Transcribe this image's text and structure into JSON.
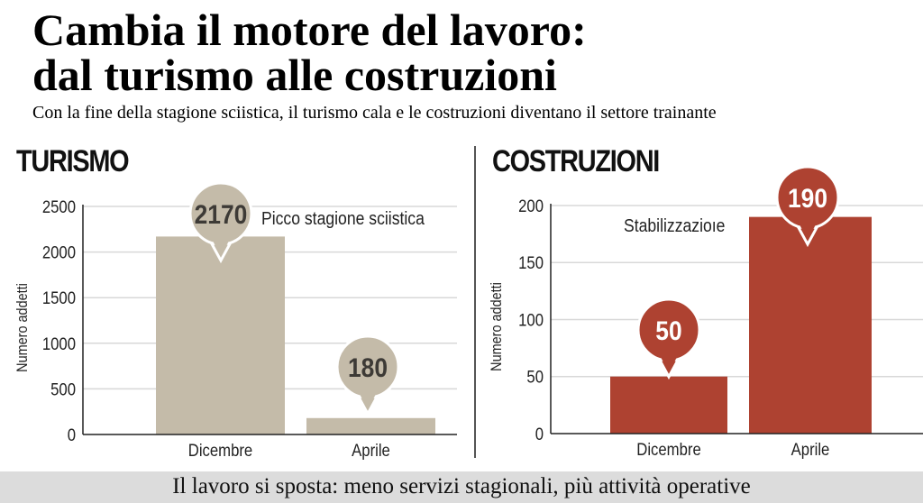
{
  "title_line1": "Cambia il motore del lavoro:",
  "title_line2": "dal turismo alle costruzioni",
  "subtitle": "Con la fine della stagione sciistica, il turismo cala e le costruzioni diventano il settore trainante",
  "footer": "Il lavoro si sposta: meno servizi stagionali, più attività operative",
  "chart_data": [
    {
      "type": "bar",
      "title": "TURISMO",
      "ylabel": "Numero addetti",
      "categories": [
        "Dicembre",
        "Aprile"
      ],
      "values": [
        2170,
        180
      ],
      "ylim": [
        0,
        2500
      ],
      "yticks": [
        0,
        500,
        1000,
        1500,
        2000,
        2500
      ],
      "annotation": "Picco stagione sciistica",
      "color": "#c4bba9",
      "label_color": "#3d3a36",
      "grid": true
    },
    {
      "type": "bar",
      "title": "COSTRUZIONI",
      "ylabel": "Numero addetti",
      "categories": [
        "Dicembre",
        "Aprile"
      ],
      "values": [
        50,
        190
      ],
      "ylim": [
        0,
        200
      ],
      "yticks": [
        0,
        50,
        100,
        150,
        200
      ],
      "annotation": "Stabilizzazioıe",
      "color": "#ae4231",
      "label_color": "#ffffff",
      "grid": true
    }
  ]
}
